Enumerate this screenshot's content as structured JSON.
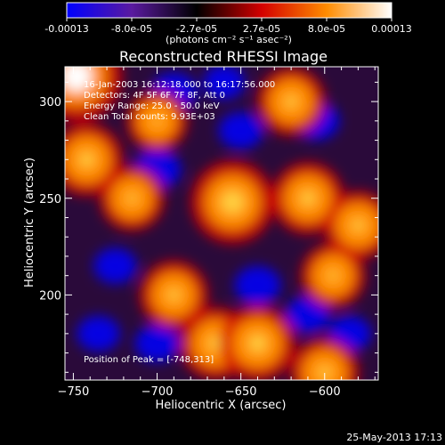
{
  "chart_data": {
    "type": "heatmap",
    "title": "Reconstructed RHESSI Image",
    "colorbar": {
      "ticks": [
        "-0.00013",
        "-8.0e-05",
        "-2.7e-05",
        "2.7e-05",
        "8.0e-05",
        "0.00013"
      ],
      "units": "(photons cm⁻² s⁻¹ asec⁻²)",
      "range": [
        -0.00013,
        0.00013
      ],
      "colors": [
        "#0000ff",
        "#5a1aa0",
        "#000000",
        "#d40000",
        "#ff8c00",
        "#ffffff"
      ]
    },
    "xlabel": "Heliocentric X (arcsec)",
    "ylabel": "Heliocentric Y (arcsec)",
    "xlim": [
      -755,
      -568
    ],
    "ylim": [
      156,
      318
    ],
    "xticks": [
      -750,
      -700,
      -650,
      -600
    ],
    "yticks": [
      200,
      250,
      300
    ],
    "annotations": [
      "16-Jan-2003 16:12:18.000 to 16:17:56.000",
      "Detectors: 4F 5F 6F 7F 8F, Att 0",
      "Energy Range: 25.0 - 50.0 keV",
      "Clean    Total counts: 9.93E+03"
    ],
    "peak_label": "Position of Peak = [-748,313]",
    "peak": [
      -748,
      313
    ],
    "hot_spots": [
      {
        "x": -748,
        "y": 313,
        "value": 0.00013
      },
      {
        "x": -742,
        "y": 270,
        "value": 8e-05
      },
      {
        "x": -715,
        "y": 250,
        "value": 6e-05
      },
      {
        "x": -655,
        "y": 248,
        "value": 0.00011
      },
      {
        "x": -620,
        "y": 300,
        "value": 7e-05
      },
      {
        "x": -610,
        "y": 250,
        "value": 8e-05
      },
      {
        "x": -580,
        "y": 236,
        "value": 7e-05
      },
      {
        "x": -690,
        "y": 200,
        "value": 7e-05
      },
      {
        "x": -665,
        "y": 175,
        "value": 8e-05
      },
      {
        "x": -640,
        "y": 175,
        "value": 9e-05
      },
      {
        "x": -600,
        "y": 160,
        "value": 7e-05
      },
      {
        "x": -595,
        "y": 210,
        "value": 6e-05
      },
      {
        "x": -700,
        "y": 290,
        "value": 5e-05
      }
    ],
    "cold_spots": [
      {
        "x": -690,
        "y": 305,
        "value": -0.0001
      },
      {
        "x": -700,
        "y": 265,
        "value": -0.00011
      },
      {
        "x": -650,
        "y": 285,
        "value": -9e-05
      },
      {
        "x": -605,
        "y": 290,
        "value": -0.0001
      },
      {
        "x": -640,
        "y": 205,
        "value": -0.0001
      },
      {
        "x": -610,
        "y": 190,
        "value": -9e-05
      },
      {
        "x": -725,
        "y": 215,
        "value": -8e-05
      },
      {
        "x": -735,
        "y": 180,
        "value": -8e-05
      },
      {
        "x": -700,
        "y": 175,
        "value": -9e-05
      },
      {
        "x": -585,
        "y": 180,
        "value": -8e-05
      },
      {
        "x": -660,
        "y": 310,
        "value": -7e-05
      }
    ]
  },
  "footer": {
    "date": "25-May-2013 17:13"
  }
}
